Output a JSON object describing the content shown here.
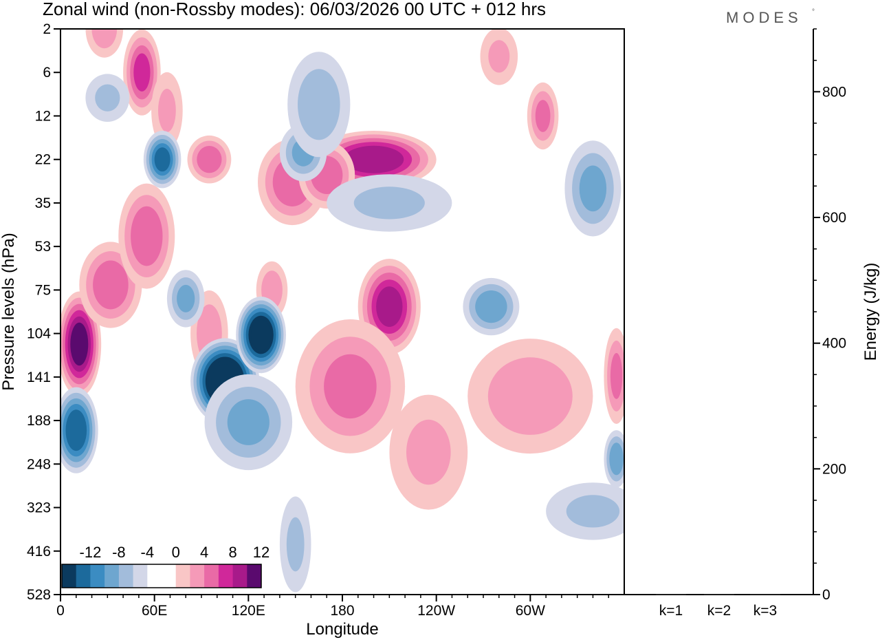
{
  "chart_data": [
    {
      "type": "heatmap",
      "title": "Zonal wind (non-Rossby modes):  06/03/2026  00 UTC  + 012 hrs",
      "xlabel": "Longitude",
      "ylabel": "Pressure levels (hPa)",
      "x_ticks": [
        "0",
        "60E",
        "120E",
        "180",
        "120W",
        "60W"
      ],
      "x_tick_values": [
        0,
        60,
        120,
        180,
        240,
        300
      ],
      "xlim": [
        0,
        360
      ],
      "y_ticks": [
        "2",
        "6",
        "12",
        "22",
        "35",
        "53",
        "75",
        "104",
        "141",
        "188",
        "248",
        "323",
        "416",
        "528"
      ],
      "colorbar": {
        "labels": [
          "-12",
          "-8",
          "-4",
          "0",
          "4",
          "8",
          "12"
        ],
        "colors": [
          "#0b3a5e",
          "#1c6a9c",
          "#3b8cc2",
          "#6ea6cf",
          "#a2bcdb",
          "#d3d7e8",
          "#ffffff",
          "#ffffff",
          "#f9c6c6",
          "#f59ab8",
          "#e96aa6",
          "#d0289a",
          "#a81a8a",
          "#5a0a6e"
        ]
      },
      "blobs": [
        {
          "lon": 12,
          "p": 112,
          "rx": 14,
          "ry": 0.55,
          "peak": 11,
          "name": "blob-0-112"
        },
        {
          "lon": 32,
          "p": 72,
          "rx": 20,
          "ry": 0.45,
          "peak": 6,
          "name": "blob-32-72"
        },
        {
          "lon": 55,
          "p": 48,
          "rx": 18,
          "ry": 0.55,
          "peak": 6,
          "name": "blob-55-48"
        },
        {
          "lon": 52,
          "p": 6,
          "rx": 12,
          "ry": 0.45,
          "peak": 7,
          "name": "blob-52-6"
        },
        {
          "lon": 68,
          "p": 11,
          "rx": 10,
          "ry": 0.4,
          "peak": 3,
          "name": "blob-68-11"
        },
        {
          "lon": 28,
          "p": 2,
          "rx": 12,
          "ry": 0.3,
          "peak": 4,
          "name": "blob-28-2"
        },
        {
          "lon": 95,
          "p": 22,
          "rx": 14,
          "ry": 0.25,
          "peak": 6,
          "name": "blob-95-22"
        },
        {
          "lon": 148,
          "p": 28,
          "rx": 22,
          "ry": 0.45,
          "peak": 6,
          "name": "blob-148-28"
        },
        {
          "lon": 200,
          "p": 22,
          "rx": 40,
          "ry": 0.3,
          "peak": 10,
          "name": "blob-200-22"
        },
        {
          "lon": 170,
          "p": 26,
          "rx": 18,
          "ry": 0.35,
          "peak": 6,
          "name": "blob-170-26"
        },
        {
          "lon": 210,
          "p": 85,
          "rx": 20,
          "ry": 0.5,
          "peak": 9,
          "name": "blob-210-85"
        },
        {
          "lon": 185,
          "p": 150,
          "rx": 35,
          "ry": 0.7,
          "peak": 5,
          "name": "blob-185-150"
        },
        {
          "lon": 235,
          "p": 230,
          "rx": 25,
          "ry": 0.6,
          "peak": 3,
          "name": "blob-235-230"
        },
        {
          "lon": 300,
          "p": 160,
          "rx": 40,
          "ry": 0.6,
          "peak": 4,
          "name": "blob-300-160"
        },
        {
          "lon": 308,
          "p": 12,
          "rx": 10,
          "ry": 0.35,
          "peak": 5,
          "name": "blob-308-12"
        },
        {
          "lon": 280,
          "p": 4,
          "rx": 12,
          "ry": 0.3,
          "peak": 3,
          "name": "blob-280-4"
        },
        {
          "lon": 95,
          "p": 104,
          "rx": 12,
          "ry": 0.45,
          "peak": 4,
          "name": "blob-95-104"
        },
        {
          "lon": 135,
          "p": 75,
          "rx": 10,
          "ry": 0.3,
          "peak": 4,
          "name": "blob-135-75"
        },
        {
          "lon": 355,
          "p": 140,
          "rx": 8,
          "ry": 0.5,
          "peak": 5,
          "name": "blob-355-140"
        },
        {
          "lon": 10,
          "p": 200,
          "rx": 14,
          "ry": 0.45,
          "peak": -10,
          "name": "blob-10-200"
        },
        {
          "lon": 105,
          "p": 145,
          "rx": 22,
          "ry": 0.45,
          "peak": -15,
          "name": "blob-105-145"
        },
        {
          "lon": 128,
          "p": 105,
          "rx": 16,
          "ry": 0.4,
          "peak": -13,
          "name": "blob-128-105"
        },
        {
          "lon": 65,
          "p": 22,
          "rx": 12,
          "ry": 0.3,
          "peak": -9,
          "name": "blob-65-22"
        },
        {
          "lon": 155,
          "p": 20,
          "rx": 15,
          "ry": 0.3,
          "peak": -5,
          "name": "blob-155-20"
        },
        {
          "lon": 165,
          "p": 10,
          "rx": 20,
          "ry": 0.55,
          "peak": -4,
          "name": "blob-165-10"
        },
        {
          "lon": 275,
          "p": 85,
          "rx": 18,
          "ry": 0.3,
          "peak": -6,
          "name": "blob-275-85"
        },
        {
          "lon": 340,
          "p": 30,
          "rx": 18,
          "ry": 0.5,
          "peak": -5,
          "name": "blob-340-30"
        },
        {
          "lon": 355,
          "p": 240,
          "rx": 8,
          "ry": 0.3,
          "peak": -6,
          "name": "blob-355-240"
        },
        {
          "lon": 80,
          "p": 80,
          "rx": 12,
          "ry": 0.3,
          "peak": -5,
          "name": "blob-80-80"
        },
        {
          "lon": 210,
          "p": 35,
          "rx": 40,
          "ry": 0.3,
          "peak": -3,
          "name": "blob-210-35"
        },
        {
          "lon": 150,
          "p": 400,
          "rx": 10,
          "ry": 0.5,
          "peak": -3,
          "name": "blob-150-400"
        },
        {
          "lon": 340,
          "p": 330,
          "rx": 30,
          "ry": 0.3,
          "peak": -3,
          "name": "blob-340-330"
        },
        {
          "lon": 30,
          "p": 9,
          "rx": 14,
          "ry": 0.25,
          "peak": -3,
          "name": "blob-30-9"
        },
        {
          "lon": 120,
          "p": 190,
          "rx": 28,
          "ry": 0.5,
          "peak": -5,
          "name": "blob-120-190"
        }
      ]
    },
    {
      "type": "bar",
      "categories": [
        "k=1",
        "k=2",
        "k=3"
      ],
      "values": [
        1,
        1,
        1
      ],
      "ylabel": "Energy (J/kg)",
      "ylim": [
        0,
        900
      ],
      "y_ticks": [
        0,
        200,
        400,
        600,
        800
      ]
    }
  ],
  "branding": {
    "logo": "MODES",
    "mark": "°"
  }
}
